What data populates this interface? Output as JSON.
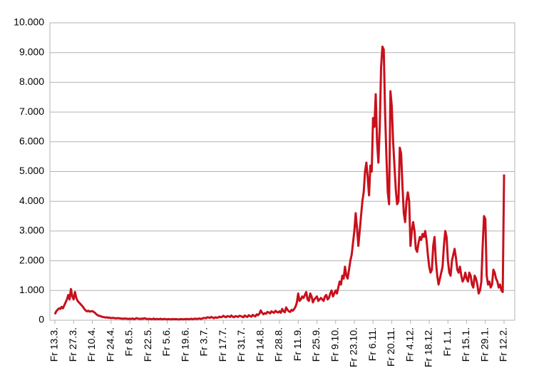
{
  "chart_data": {
    "type": "line",
    "color": "#c8101c",
    "grid": true,
    "ylim": [
      0,
      10000
    ],
    "yticks": [
      0,
      {
        "value": 1000,
        "label": "1.000"
      },
      {
        "value": 2000,
        "label": "2.000"
      },
      {
        "value": 3000,
        "label": "3.000"
      },
      {
        "value": 4000,
        "label": "4.000"
      },
      {
        "value": 5000,
        "label": "5.000"
      },
      {
        "value": 6000,
        "label": "6.000"
      },
      {
        "value": 7000,
        "label": "7.000"
      },
      {
        "value": 8000,
        "label": "8.000"
      },
      {
        "value": 9000,
        "label": "9.000"
      },
      {
        "value": 10000,
        "label": "10.000"
      }
    ],
    "categories": [
      "Fr 13.3.",
      null,
      null,
      null,
      null,
      null,
      null,
      null,
      null,
      null,
      null,
      null,
      null,
      null,
      "Fr 27.3.",
      null,
      null,
      null,
      null,
      null,
      null,
      null,
      null,
      null,
      null,
      null,
      null,
      null,
      "Fr 10.4.",
      null,
      null,
      null,
      null,
      null,
      null,
      null,
      null,
      null,
      null,
      null,
      null,
      null,
      "Fr 24.4.",
      null,
      null,
      null,
      null,
      null,
      null,
      null,
      null,
      null,
      null,
      null,
      null,
      null,
      "Fr 8.5.",
      null,
      null,
      null,
      null,
      null,
      null,
      null,
      null,
      null,
      null,
      null,
      null,
      null,
      "Fr 22.5.",
      null,
      null,
      null,
      null,
      null,
      null,
      null,
      null,
      null,
      null,
      null,
      null,
      null,
      "Fr 5.6.",
      null,
      null,
      null,
      null,
      null,
      null,
      null,
      null,
      null,
      null,
      null,
      null,
      null,
      "Fr 19.6.",
      null,
      null,
      null,
      null,
      null,
      null,
      null,
      null,
      null,
      null,
      null,
      null,
      null,
      "Fr 3.7.",
      null,
      null,
      null,
      null,
      null,
      null,
      null,
      null,
      null,
      null,
      null,
      null,
      null,
      "Fr 17.7.",
      null,
      null,
      null,
      null,
      null,
      null,
      null,
      null,
      null,
      null,
      null,
      null,
      null,
      "Fr 31.7.",
      null,
      null,
      null,
      null,
      null,
      null,
      null,
      null,
      null,
      null,
      null,
      null,
      null,
      "Fr 14.8.",
      null,
      null,
      null,
      null,
      null,
      null,
      null,
      null,
      null,
      null,
      null,
      null,
      null,
      "Fr 28.8.",
      null,
      null,
      null,
      null,
      null,
      null,
      null,
      null,
      null,
      null,
      null,
      null,
      null,
      "Fr 11.9.",
      null,
      null,
      null,
      null,
      null,
      null,
      null,
      null,
      null,
      null,
      null,
      null,
      null,
      "Fr 25.9.",
      null,
      null,
      null,
      null,
      null,
      null,
      null,
      null,
      null,
      null,
      null,
      null,
      null,
      "Fr 9.10.",
      null,
      null,
      null,
      null,
      null,
      null,
      null,
      null,
      null,
      null,
      null,
      null,
      null,
      "Fr 23.10.",
      null,
      null,
      null,
      null,
      null,
      null,
      null,
      null,
      null,
      null,
      null,
      null,
      null,
      "Fr 6.11.",
      null,
      null,
      null,
      null,
      null,
      null,
      null,
      null,
      null,
      null,
      null,
      null,
      null,
      "Fr 20.11.",
      null,
      null,
      null,
      null,
      null,
      null,
      null,
      null,
      null,
      null,
      null,
      null,
      null,
      "Fr 4.12.",
      null,
      null,
      null,
      null,
      null,
      null,
      null,
      null,
      null,
      null,
      null,
      null,
      null,
      "Fr 18.12.",
      null,
      null,
      null,
      null,
      null,
      null,
      null,
      null,
      null,
      null,
      null,
      null,
      null,
      "Fr 1.1.",
      null,
      null,
      null,
      null,
      null,
      null,
      null,
      null,
      null,
      null,
      null,
      null,
      null,
      "Fr 15.1.",
      null,
      null,
      null,
      null,
      null,
      null,
      null,
      null,
      null,
      null,
      null,
      null,
      null,
      "Fr 29.1.",
      null,
      null,
      null,
      null,
      null,
      null,
      null,
      null,
      null,
      null,
      null,
      null,
      null,
      "Fr 12.2."
    ],
    "values": [
      200,
      300,
      350,
      400,
      380,
      450,
      400,
      500,
      600,
      700,
      850,
      700,
      1050,
      800,
      700,
      950,
      750,
      650,
      600,
      550,
      500,
      450,
      380,
      330,
      300,
      320,
      290,
      300,
      310,
      280,
      250,
      200,
      170,
      150,
      140,
      120,
      110,
      100,
      90,
      100,
      80,
      90,
      70,
      80,
      75,
      70,
      60,
      75,
      65,
      60,
      55,
      50,
      60,
      55,
      50,
      45,
      50,
      45,
      60,
      40,
      45,
      70,
      55,
      50,
      40,
      60,
      45,
      70,
      50,
      45,
      40,
      50,
      35,
      40,
      55,
      30,
      45,
      40,
      35,
      50,
      30,
      40,
      45,
      35,
      30,
      40,
      35,
      25,
      45,
      30,
      40,
      35,
      30,
      25,
      40,
      35,
      30,
      40,
      35,
      45,
      30,
      40,
      50,
      35,
      45,
      55,
      40,
      50,
      60,
      45,
      55,
      70,
      80,
      70,
      100,
      90,
      80,
      110,
      90,
      70,
      100,
      85,
      90,
      120,
      100,
      110,
      150,
      120,
      100,
      140,
      130,
      110,
      160,
      120,
      100,
      140,
      130,
      110,
      150,
      140,
      120,
      100,
      160,
      130,
      110,
      170,
      140,
      120,
      180,
      150,
      130,
      200,
      170,
      220,
      330,
      250,
      200,
      240,
      220,
      280,
      260,
      230,
      300,
      270,
      250,
      320,
      280,
      260,
      300,
      250,
      380,
      300,
      270,
      430,
      350,
      300,
      280,
      350,
      320,
      380,
      450,
      600,
      900,
      650,
      700,
      800,
      750,
      850,
      950,
      700,
      650,
      900,
      800,
      600,
      700,
      750,
      800,
      650,
      700,
      750,
      700,
      650,
      800,
      850,
      700,
      750,
      900,
      1000,
      800,
      900,
      1000,
      900,
      1100,
      1300,
      1200,
      1500,
      1400,
      1800,
      1500,
      1400,
      1700,
      2000,
      2200,
      2600,
      3000,
      3600,
      3100,
      2500,
      3000,
      3500,
      4000,
      4300,
      5000,
      5300,
      4800,
      4200,
      5200,
      5000,
      6800,
      6500,
      7600,
      6000,
      5300,
      6500,
      8500,
      9200,
      9100,
      7000,
      5500,
      4300,
      3900,
      7700,
      7200,
      6000,
      5200,
      4400,
      3900,
      4000,
      5800,
      5600,
      4500,
      3600,
      3300,
      4000,
      4300,
      4000,
      2500,
      3000,
      3300,
      3000,
      2400,
      2300,
      2600,
      2800,
      2700,
      2900,
      2800,
      3000,
      2700,
      2200,
      1800,
      1600,
      1700,
      2500,
      2800,
      2000,
      1500,
      1200,
      1400,
      1600,
      1800,
      2500,
      3000,
      2800,
      2000,
      1600,
      1500,
      2000,
      2200,
      2400,
      2100,
      1700,
      1600,
      1800,
      1500,
      1300,
      1400,
      1600,
      1400,
      1300,
      1600,
      1500,
      1200,
      1100,
      1500,
      1400,
      1200,
      900,
      1000,
      1300,
      2500,
      3500,
      3400,
      1500,
      1200,
      1300,
      1100,
      1200,
      1700,
      1600,
      1400,
      1300,
      1100,
      1200,
      1000,
      950,
      4900
    ]
  }
}
